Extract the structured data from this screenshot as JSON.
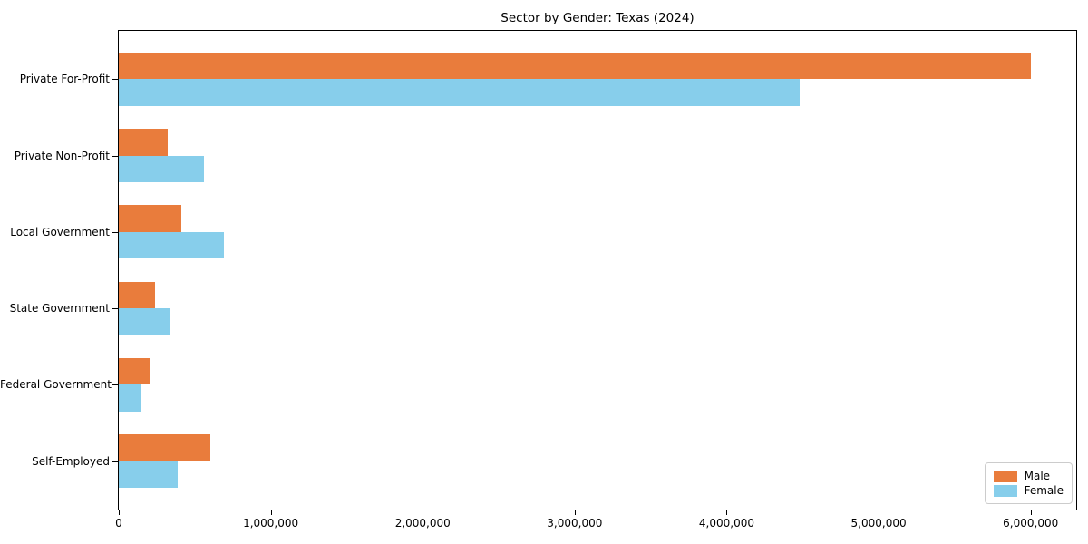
{
  "chart_data": {
    "type": "bar",
    "orientation": "horizontal",
    "title": "Sector by Gender: Texas (2024)",
    "xlabel": "",
    "ylabel": "",
    "grid": false,
    "categories": [
      "Private For-Profit",
      "Private Non-Profit",
      "Local Government",
      "State Government",
      "Federal Government",
      "Self-Employed"
    ],
    "series": [
      {
        "name": "Male",
        "color": "#E97C3C",
        "values": [
          6000000,
          320000,
          410000,
          240000,
          200000,
          600000
        ]
      },
      {
        "name": "Female",
        "color": "#87CEEB",
        "values": [
          4480000,
          560000,
          690000,
          340000,
          150000,
          390000
        ]
      }
    ],
    "xlim": [
      0,
      6300000
    ],
    "x_tick_values": [
      0,
      1000000,
      2000000,
      3000000,
      4000000,
      5000000,
      6000000
    ],
    "x_tick_labels": [
      "0",
      "1,000,000",
      "2,000,000",
      "3,000,000",
      "4,000,000",
      "5,000,000",
      "6,000,000"
    ],
    "legend": {
      "position": "lower right",
      "border_color": "#cccccc",
      "entries": [
        "Male",
        "Female"
      ]
    },
    "axis_color": "#000000"
  }
}
